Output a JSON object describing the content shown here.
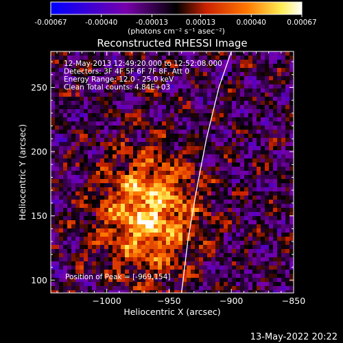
{
  "colorbar": {
    "ticks": [
      "-0.00067",
      "-0.00040",
      "-0.00013",
      "0.00013",
      "0.00040",
      "0.00067"
    ],
    "tick_values": [
      -0.00067,
      -0.0004,
      -0.00013,
      0.00013,
      0.0004,
      0.00067
    ],
    "range": [
      -0.00067,
      0.00067
    ],
    "unit_label": "(photons cm⁻² s⁻¹ asec⁻²)",
    "colors": [
      "#0000ff",
      "#7700aa",
      "#000000",
      "#cc2200",
      "#ff7700",
      "#ffee55",
      "#ffffff"
    ]
  },
  "chart_data": {
    "type": "heatmap",
    "title": "Reconstructed RHESSI Image",
    "xlabel": "Heliocentric X (arcsec)",
    "ylabel": "Heliocentric Y (arcsec)",
    "xlim": [
      -1045,
      -850
    ],
    "ylim": [
      90,
      278
    ],
    "x_ticks": [
      -1000,
      -950,
      -900,
      -850
    ],
    "x_tick_labels": [
      "−1000",
      "−950",
      "−900",
      "−850"
    ],
    "y_ticks": [
      100,
      150,
      200,
      250
    ],
    "y_tick_labels": [
      "100",
      "150",
      "200",
      "250"
    ],
    "annotations": [
      "12-May-2013 12:49:20.000 to 12:52:08.000",
      "Detectors: 3F 4F 5F 6F 7F 8F, Att 0",
      "Energy Range: 12.0 - 25.0 keV",
      "Clean     Total counts: 4.84E+03"
    ],
    "peak_label": "Position of Peak = [-969,154]",
    "peak": [
      -969,
      154
    ],
    "limb_points": [
      [
        -940,
        90
      ],
      [
        -935,
        130
      ],
      [
        -928,
        170
      ],
      [
        -920,
        210
      ],
      [
        -910,
        250
      ],
      [
        -900,
        278
      ]
    ]
  },
  "footer": {
    "timestamp": "13-May-2022 20:22"
  }
}
